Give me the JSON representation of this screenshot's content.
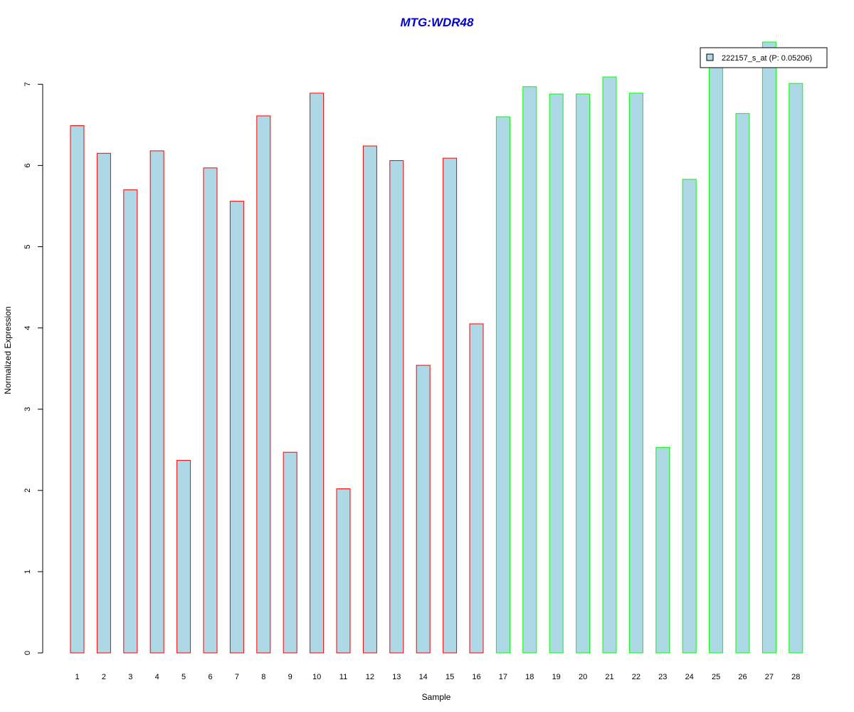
{
  "chart_data": {
    "type": "bar",
    "title": "MTG:WDR48",
    "xlabel": "Sample",
    "ylabel": "Normalized Expression",
    "ylim": [
      0,
      7.5
    ],
    "yticks": [
      0,
      1,
      2,
      3,
      4,
      5,
      6,
      7
    ],
    "categories": [
      "1",
      "2",
      "3",
      "4",
      "5",
      "6",
      "7",
      "8",
      "9",
      "10",
      "11",
      "12",
      "13",
      "14",
      "15",
      "16",
      "17",
      "18",
      "19",
      "20",
      "21",
      "22",
      "23",
      "24",
      "25",
      "26",
      "27",
      "28"
    ],
    "values": [
      6.49,
      6.15,
      5.7,
      6.18,
      2.37,
      5.97,
      5.56,
      6.61,
      2.47,
      6.89,
      2.02,
      6.24,
      6.06,
      3.54,
      6.09,
      4.05,
      6.6,
      6.97,
      6.88,
      6.88,
      7.09,
      6.89,
      2.53,
      5.83,
      7.3,
      6.64,
      7.52,
      7.01
    ],
    "bar_fill": "#add8e6",
    "group_border_colors": [
      "#ff0000",
      "#ff0000",
      "#ff0000",
      "#ff0000",
      "#ff0000",
      "#ff0000",
      "#ff0000",
      "#ff0000",
      "#ff0000",
      "#ff0000",
      "#ff0000",
      "#ff0000",
      "#ff0000",
      "#ff0000",
      "#ff0000",
      "#ff0000",
      "#00ff00",
      "#00ff00",
      "#00ff00",
      "#00ff00",
      "#00ff00",
      "#00ff00",
      "#00ff00",
      "#00ff00",
      "#00ff00",
      "#00ff00",
      "#00ff00",
      "#00ff00"
    ],
    "legend": {
      "label": "222157_s_at (P: 0.05206)",
      "position": "top-right"
    },
    "grid": false
  }
}
